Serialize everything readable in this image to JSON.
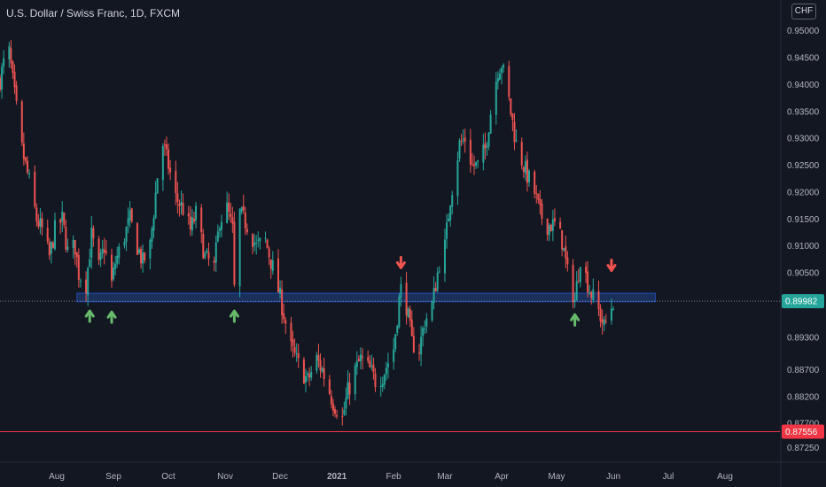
{
  "header": {
    "title": "U.S. Dollar / Swiss Franc, 1D, FXCM",
    "currency_badge": "CHF"
  },
  "colors": {
    "background": "#131722",
    "up": "#26a69a",
    "down": "#ef5350",
    "axis_text": "#b2b5be",
    "zone_fill": "#1e3a6e",
    "zone_border": "#2962ff",
    "arrow_up": "#66bb6a",
    "arrow_down": "#ef5350",
    "level_line": "#f23645",
    "price_line": "#787b86"
  },
  "chart_data": {
    "type": "candlestick",
    "title": "U.S. Dollar / Swiss Franc, 1D, FXCM",
    "ylim": [
      0.8702,
      0.9558
    ],
    "y_ticks": [
      {
        "label": "0.95000",
        "value": 0.95
      },
      {
        "label": "0.94500",
        "value": 0.945
      },
      {
        "label": "0.94000",
        "value": 0.94
      },
      {
        "label": "0.93500",
        "value": 0.935
      },
      {
        "label": "0.93000",
        "value": 0.93
      },
      {
        "label": "0.92500",
        "value": 0.925
      },
      {
        "label": "0.92000",
        "value": 0.92
      },
      {
        "label": "0.91500",
        "value": 0.915
      },
      {
        "label": "0.91000",
        "value": 0.91
      },
      {
        "label": "0.90500",
        "value": 0.905
      },
      {
        "label": "0.89300",
        "value": 0.893
      },
      {
        "label": "0.88700",
        "value": 0.887
      },
      {
        "label": "0.88200",
        "value": 0.882
      },
      {
        "label": "0.87700",
        "value": 0.877
      },
      {
        "label": "0.87250",
        "value": 0.8725
      }
    ],
    "x_range": [
      "2020-07-01",
      "2021-08-31"
    ],
    "x_ticks": [
      {
        "label": "Aug",
        "date": "2020-08-01"
      },
      {
        "label": "Sep",
        "date": "2020-09-01"
      },
      {
        "label": "Oct",
        "date": "2020-10-01"
      },
      {
        "label": "Nov",
        "date": "2020-11-01"
      },
      {
        "label": "Dec",
        "date": "2020-12-01"
      },
      {
        "label": "2021",
        "date": "2021-01-01",
        "bold": true
      },
      {
        "label": "Feb",
        "date": "2021-02-01"
      },
      {
        "label": "Mar",
        "date": "2021-03-01"
      },
      {
        "label": "Apr",
        "date": "2021-04-01"
      },
      {
        "label": "May",
        "date": "2021-05-01"
      },
      {
        "label": "Jun",
        "date": "2021-06-01"
      },
      {
        "label": "Jul",
        "date": "2021-07-01"
      },
      {
        "label": "Aug",
        "date": "2021-08-01"
      }
    ],
    "price_labels": [
      {
        "label": "0.89982",
        "value": 0.89982,
        "role": "last-price"
      },
      {
        "label": "0.87556",
        "value": 0.87556,
        "role": "support-level"
      }
    ],
    "support_zone": {
      "start": "2020-08-12",
      "end": "2021-06-24",
      "low": 0.8997,
      "high": 0.9013
    },
    "support_level": 0.87556,
    "arrows": [
      {
        "direction": "up",
        "date": "2020-08-19",
        "price": 0.8985
      },
      {
        "direction": "up",
        "date": "2020-08-31",
        "price": 0.8983
      },
      {
        "direction": "up",
        "date": "2020-11-06",
        "price": 0.8985
      },
      {
        "direction": "down",
        "date": "2021-02-05",
        "price": 0.9055
      },
      {
        "direction": "up",
        "date": "2021-05-11",
        "price": 0.8978
      },
      {
        "direction": "down",
        "date": "2021-05-31",
        "price": 0.905
      }
    ],
    "price_path": [
      [
        "2020-07-01",
        0.941
      ],
      [
        "2020-07-03",
        0.944
      ],
      [
        "2020-07-06",
        0.946
      ],
      [
        "2020-07-09",
        0.938
      ],
      [
        "2020-07-13",
        0.928
      ],
      [
        "2020-07-17",
        0.922
      ],
      [
        "2020-07-21",
        0.915
      ],
      [
        "2020-07-24",
        0.913
      ],
      [
        "2020-07-28",
        0.908
      ],
      [
        "2020-07-31",
        0.913
      ],
      [
        "2020-08-04",
        0.915
      ],
      [
        "2020-08-07",
        0.909
      ],
      [
        "2020-08-11",
        0.91
      ],
      [
        "2020-08-13",
        0.905
      ],
      [
        "2020-08-17",
        0.903
      ],
      [
        "2020-08-20",
        0.912
      ],
      [
        "2020-08-24",
        0.906
      ],
      [
        "2020-08-27",
        0.91
      ],
      [
        "2020-08-31",
        0.903
      ],
      [
        "2020-09-02",
        0.907
      ],
      [
        "2020-09-07",
        0.912
      ],
      [
        "2020-09-10",
        0.915
      ],
      [
        "2020-09-14",
        0.91
      ],
      [
        "2020-09-17",
        0.907
      ],
      [
        "2020-09-21",
        0.91
      ],
      [
        "2020-09-25",
        0.923
      ],
      [
        "2020-09-28",
        0.929
      ],
      [
        "2020-10-01",
        0.925
      ],
      [
        "2020-10-05",
        0.919
      ],
      [
        "2020-10-09",
        0.917
      ],
      [
        "2020-10-13",
        0.913
      ],
      [
        "2020-10-16",
        0.916
      ],
      [
        "2020-10-21",
        0.908
      ],
      [
        "2020-10-26",
        0.906
      ],
      [
        "2020-10-29",
        0.915
      ],
      [
        "2020-11-02",
        0.917
      ],
      [
        "2020-11-05",
        0.913
      ],
      [
        "2020-11-06",
        0.902
      ],
      [
        "2020-11-09",
        0.916
      ],
      [
        "2020-11-13",
        0.914
      ],
      [
        "2020-11-18",
        0.91
      ],
      [
        "2020-11-23",
        0.911
      ],
      [
        "2020-11-27",
        0.906
      ],
      [
        "2020-12-02",
        0.899
      ],
      [
        "2020-12-07",
        0.891
      ],
      [
        "2020-12-11",
        0.888
      ],
      [
        "2020-12-16",
        0.885
      ],
      [
        "2020-12-21",
        0.889
      ],
      [
        "2020-12-24",
        0.887
      ],
      [
        "2020-12-30",
        0.881
      ],
      [
        "2021-01-04",
        0.878
      ],
      [
        "2021-01-07",
        0.883
      ],
      [
        "2021-01-11",
        0.887
      ],
      [
        "2021-01-14",
        0.889
      ],
      [
        "2021-01-19",
        0.887
      ],
      [
        "2021-01-22",
        0.885
      ],
      [
        "2021-01-26",
        0.886
      ],
      [
        "2021-02-01",
        0.891
      ],
      [
        "2021-02-04",
        0.9
      ],
      [
        "2021-02-05",
        0.902
      ],
      [
        "2021-02-08",
        0.899
      ],
      [
        "2021-02-11",
        0.892
      ],
      [
        "2021-02-15",
        0.891
      ],
      [
        "2021-02-18",
        0.896
      ],
      [
        "2021-02-22",
        0.899
      ],
      [
        "2021-02-26",
        0.907
      ],
      [
        "2021-03-01",
        0.91
      ],
      [
        "2021-03-04",
        0.919
      ],
      [
        "2021-03-09",
        0.929
      ],
      [
        "2021-03-12",
        0.93
      ],
      [
        "2021-03-16",
        0.925
      ],
      [
        "2021-03-19",
        0.925
      ],
      [
        "2021-03-23",
        0.928
      ],
      [
        "2021-03-26",
        0.935
      ],
      [
        "2021-03-30",
        0.943
      ],
      [
        "2021-04-01",
        0.944
      ],
      [
        "2021-04-05",
        0.937
      ],
      [
        "2021-04-09",
        0.929
      ],
      [
        "2021-04-14",
        0.924
      ],
      [
        "2021-04-19",
        0.92
      ],
      [
        "2021-04-22",
        0.916
      ],
      [
        "2021-04-26",
        0.914
      ],
      [
        "2021-04-30",
        0.914
      ],
      [
        "2021-05-04",
        0.911
      ],
      [
        "2021-05-07",
        0.905
      ],
      [
        "2021-05-11",
        0.9
      ],
      [
        "2021-05-14",
        0.908
      ],
      [
        "2021-05-19",
        0.902
      ],
      [
        "2021-05-24",
        0.898
      ],
      [
        "2021-05-27",
        0.895
      ],
      [
        "2021-06-01",
        0.8998
      ]
    ]
  }
}
